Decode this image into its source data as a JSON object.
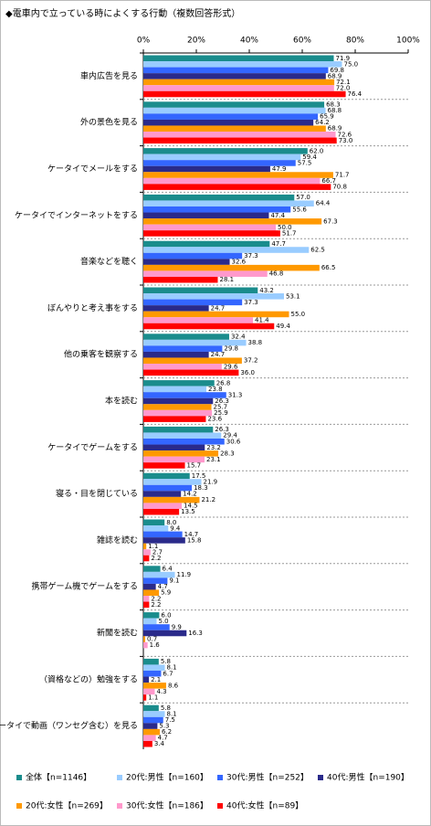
{
  "chart_data": {
    "type": "hbar",
    "title": "◆電車内で立っている時によくする行動（複数回答形式）",
    "categories": [
      "車内広告を見る",
      "外の景色を見る",
      "ケータイでメールをする",
      "ケータイでインターネットをする",
      "音楽などを聴く",
      "ぼんやりと考え事をする",
      "他の乗客を観察する",
      "本を読む",
      "ケータイでゲームをする",
      "寝る・目を閉じている",
      "雑誌を読む",
      "携帯ゲーム機でゲームをする",
      "新聞を読む",
      "（資格などの）勉強をする",
      "ケータイで動画（ワンセグ含む）を見る"
    ],
    "xlim": [
      0,
      100
    ],
    "xticks": [
      {
        "value": 0,
        "label": "0%"
      },
      {
        "value": 20,
        "label": "20%"
      },
      {
        "value": 40,
        "label": "40%"
      },
      {
        "value": 60,
        "label": "60%"
      },
      {
        "value": 80,
        "label": "80%"
      },
      {
        "value": 100,
        "label": "100%"
      }
    ],
    "series": [
      {
        "name": "全体【n=1146】",
        "color": "#1a8c8c",
        "values": [
          71.9,
          68.3,
          62.0,
          57.0,
          47.7,
          43.2,
          32.4,
          26.8,
          26.3,
          17.5,
          8.0,
          6.4,
          6.0,
          5.8,
          5.8
        ],
        "value_labels": [
          "71.9",
          "68.3",
          "62.0",
          "57.0",
          "47.7",
          "43.2",
          "32.4",
          "26.8",
          "26.3",
          "17.5",
          "8.0",
          "6.4",
          "6.0",
          "5.8",
          "5.8"
        ]
      },
      {
        "name": "20代:男性【n=160】",
        "color": "#99ccff",
        "values": [
          75.0,
          68.8,
          59.4,
          64.4,
          62.5,
          53.1,
          38.8,
          23.8,
          29.4,
          21.9,
          9.4,
          11.9,
          5.0,
          8.1,
          8.1
        ],
        "value_labels": [
          "75.0",
          "68.8",
          "59.4",
          "64.4",
          "62.5",
          "53.1",
          "38.8",
          "23.8",
          "29.4",
          "21.9",
          "9.4",
          "11.9",
          "5.0",
          "8.1",
          "8.1"
        ]
      },
      {
        "name": "30代:男性【n=252】",
        "color": "#3366ff",
        "values": [
          69.8,
          65.9,
          57.5,
          55.6,
          37.3,
          37.3,
          29.8,
          31.3,
          30.6,
          18.3,
          14.7,
          9.1,
          9.9,
          6.7,
          7.5
        ],
        "value_labels": [
          "69.8",
          "65.9",
          "57.5",
          "55.6",
          "37.3",
          "37.3",
          "29.8",
          "31.3",
          "30.6",
          "18.3",
          "14.7",
          "9.1",
          "9.9",
          "6.7",
          "7.5"
        ]
      },
      {
        "name": "40代:男性【n=190】",
        "color": "#2a2a8a",
        "values": [
          68.9,
          64.2,
          47.9,
          47.4,
          32.6,
          24.7,
          24.7,
          26.3,
          23.2,
          14.2,
          15.8,
          4.7,
          16.3,
          2.1,
          5.3
        ],
        "value_labels": [
          "68.9",
          "64.2",
          "47.9",
          "47.4",
          "32.6",
          "24.7",
          "24.7",
          "26.3",
          "23.2",
          "14.2",
          "15.8",
          "4.7",
          "16.3",
          "2.1",
          "5.3"
        ]
      },
      {
        "name": "20代:女性【n=269】",
        "color": "#ff9900",
        "values": [
          72.1,
          68.9,
          71.7,
          67.3,
          66.5,
          55.0,
          37.2,
          25.7,
          28.3,
          21.2,
          1.1,
          5.9,
          0.7,
          8.6,
          6.2
        ],
        "value_labels": [
          "72.1",
          "68.9",
          "71.7",
          "67.3",
          "66.5",
          "55.0",
          "37.2",
          "25.7",
          "28.3",
          "21.2",
          "1.1",
          "5.9",
          "0.7",
          "8.6",
          "6.2"
        ]
      },
      {
        "name": "30代:女性【n=186】",
        "color": "#ff99cc",
        "values": [
          72.0,
          72.6,
          66.7,
          50.0,
          46.8,
          41.4,
          29.6,
          25.9,
          23.1,
          14.5,
          2.7,
          2.2,
          1.6,
          4.3,
          4.7
        ],
        "value_labels": [
          "72.0",
          "72.6",
          "66.7",
          "50.0",
          "46.8",
          "41.4",
          "29.6",
          "25.9",
          "23.1",
          "14.5",
          "2.7",
          "2.2",
          "1.6",
          "4.3",
          "4.7"
        ]
      },
      {
        "name": "40代:女性【n=89】",
        "color": "#ff0000",
        "values": [
          76.4,
          73.0,
          70.8,
          51.7,
          28.1,
          49.4,
          36.0,
          23.6,
          15.7,
          13.5,
          2.2,
          2.2,
          0,
          1.1,
          3.4
        ],
        "value_labels": [
          "76.4",
          "73.0",
          "70.8",
          "51.7",
          "28.1",
          "49.4",
          "36.0",
          "23.6",
          "15.7",
          "13.5",
          "2.2",
          "2.2",
          null,
          "1.1",
          "3.4"
        ]
      }
    ]
  }
}
